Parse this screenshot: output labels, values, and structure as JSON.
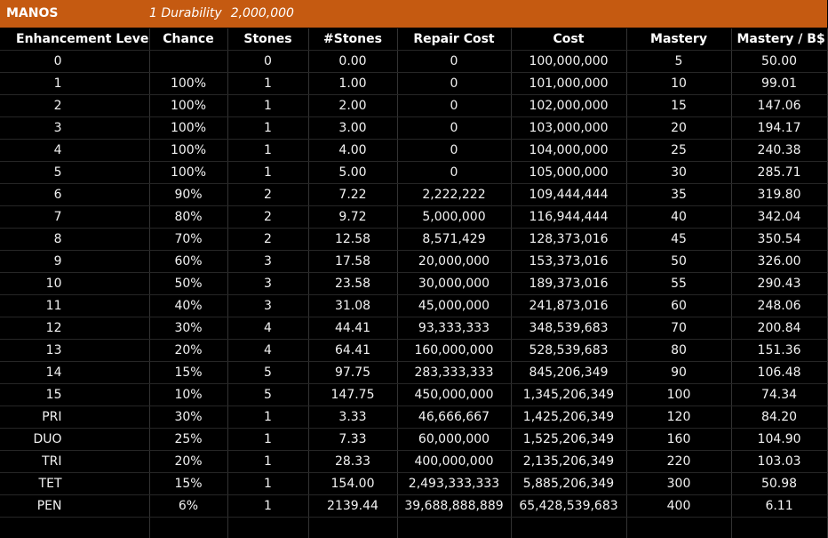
{
  "title": {
    "name": "MANOS",
    "durability_label": "1 Durability",
    "durability_value": "2,000,000"
  },
  "columns": [
    "Enhancement Level",
    "Chance",
    "Stones",
    "#Stones",
    "Repair Cost",
    "Cost",
    "Mastery",
    "Mastery / B$"
  ],
  "rows": [
    [
      "0",
      "",
      "0",
      "0.00",
      "0",
      "100,000,000",
      "5",
      "50.00"
    ],
    [
      "1",
      "100%",
      "1",
      "1.00",
      "0",
      "101,000,000",
      "10",
      "99.01"
    ],
    [
      "2",
      "100%",
      "1",
      "2.00",
      "0",
      "102,000,000",
      "15",
      "147.06"
    ],
    [
      "3",
      "100%",
      "1",
      "3.00",
      "0",
      "103,000,000",
      "20",
      "194.17"
    ],
    [
      "4",
      "100%",
      "1",
      "4.00",
      "0",
      "104,000,000",
      "25",
      "240.38"
    ],
    [
      "5",
      "100%",
      "1",
      "5.00",
      "0",
      "105,000,000",
      "30",
      "285.71"
    ],
    [
      "6",
      "90%",
      "2",
      "7.22",
      "2,222,222",
      "109,444,444",
      "35",
      "319.80"
    ],
    [
      "7",
      "80%",
      "2",
      "9.72",
      "5,000,000",
      "116,944,444",
      "40",
      "342.04"
    ],
    [
      "8",
      "70%",
      "2",
      "12.58",
      "8,571,429",
      "128,373,016",
      "45",
      "350.54"
    ],
    [
      "9",
      "60%",
      "3",
      "17.58",
      "20,000,000",
      "153,373,016",
      "50",
      "326.00"
    ],
    [
      "10",
      "50%",
      "3",
      "23.58",
      "30,000,000",
      "189,373,016",
      "55",
      "290.43"
    ],
    [
      "11",
      "40%",
      "3",
      "31.08",
      "45,000,000",
      "241,873,016",
      "60",
      "248.06"
    ],
    [
      "12",
      "30%",
      "4",
      "44.41",
      "93,333,333",
      "348,539,683",
      "70",
      "200.84"
    ],
    [
      "13",
      "20%",
      "4",
      "64.41",
      "160,000,000",
      "528,539,683",
      "80",
      "151.36"
    ],
    [
      "14",
      "15%",
      "5",
      "97.75",
      "283,333,333",
      "845,206,349",
      "90",
      "106.48"
    ],
    [
      "15",
      "10%",
      "5",
      "147.75",
      "450,000,000",
      "1,345,206,349",
      "100",
      "74.34"
    ],
    [
      "PRI",
      "30%",
      "1",
      "3.33",
      "46,666,667",
      "1,425,206,349",
      "120",
      "84.20"
    ],
    [
      "DUO",
      "25%",
      "1",
      "7.33",
      "60,000,000",
      "1,525,206,349",
      "160",
      "104.90"
    ],
    [
      "TRI",
      "20%",
      "1",
      "28.33",
      "400,000,000",
      "2,135,206,349",
      "220",
      "103.03"
    ],
    [
      "TET",
      "15%",
      "1",
      "154.00",
      "2,493,333,333",
      "5,885,206,349",
      "300",
      "50.98"
    ],
    [
      "PEN",
      "6%",
      "1",
      "2139.44",
      "39,688,888,889",
      "65,428,539,683",
      "400",
      "6.11"
    ]
  ],
  "colors": {
    "title_bar": "#c55a11",
    "background": "#000000",
    "text": "#ffffff",
    "gridline": "#333333"
  }
}
